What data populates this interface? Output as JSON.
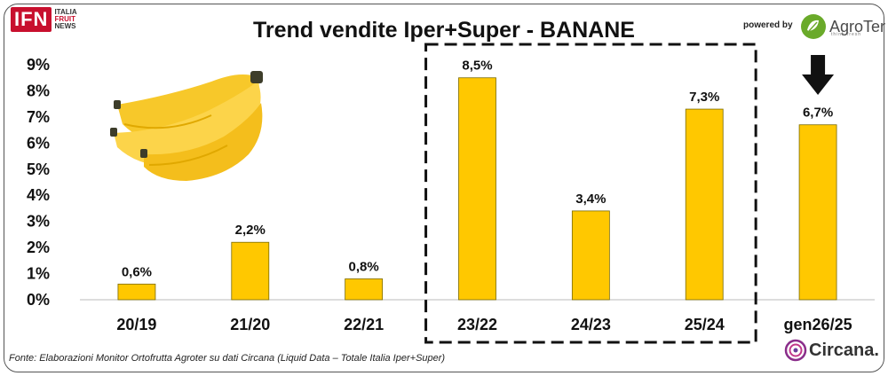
{
  "header": {
    "ifn_logo": "IFN",
    "ifn_words": [
      "ITALIA",
      "FRUIT",
      "NEWS"
    ],
    "powered_by": "powered by",
    "agroter_logo": "AgroTer",
    "agroter_sub": "think fresh"
  },
  "footer": {
    "source": "Fonte: Elaborazioni Monitor Ortofrutta Agroter su dati Circana (Liquid Data – Totale Italia Iper+Super)",
    "circana_logo": "Circana."
  },
  "colors": {
    "bar": "#FFC800",
    "bar_stroke": "#7a6a00",
    "ifn_red": "#c8102e",
    "agroter_green": "#6aaa2a"
  },
  "chart_data": {
    "type": "bar",
    "title": "Trend vendite Iper+Super - BANANE",
    "categories": [
      "20/19",
      "21/20",
      "22/21",
      "23/22",
      "24/23",
      "25/24",
      "gen26/25"
    ],
    "values": [
      0.6,
      2.2,
      0.8,
      8.5,
      3.4,
      7.3,
      6.7
    ],
    "data_labels": [
      "0,6%",
      "2,2%",
      "0,8%",
      "8,5%",
      "3,4%",
      "7,3%",
      "6,7%"
    ],
    "y_ticks": [
      "0%",
      "1%",
      "2%",
      "3%",
      "4%",
      "5%",
      "6%",
      "7%",
      "8%",
      "9%"
    ],
    "ylim": [
      0,
      9
    ],
    "grid": false,
    "legend": "none",
    "highlight": {
      "style": "dashed-box",
      "categories": [
        "23/22",
        "24/23",
        "25/24"
      ]
    },
    "marker": {
      "type": "down-arrow",
      "category": "gen26/25"
    }
  }
}
